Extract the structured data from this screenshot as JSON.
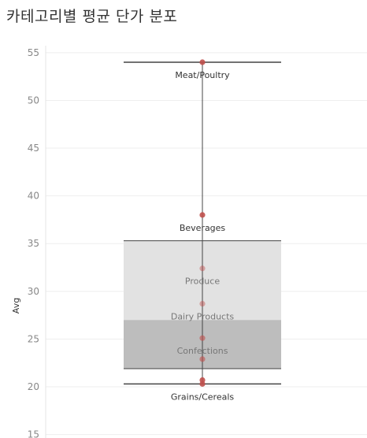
{
  "title": "카테고리별 평균 단가 분포",
  "chart_data": {
    "type": "box",
    "title": "카테고리별 평균 단가 분포",
    "ylabel": "Avg",
    "xlabel": "",
    "ylim": [
      15,
      56
    ],
    "yticks": [
      15,
      20,
      25,
      30,
      35,
      40,
      45,
      50,
      55
    ],
    "box": {
      "whisker_low": 20.3,
      "q1": 21.9,
      "median": 27.0,
      "q3": 35.3,
      "whisker_high": 54.0
    },
    "points": [
      {
        "label": "Meat/Poultry",
        "value": 54.0
      },
      {
        "label": "Beverages",
        "value": 38.0
      },
      {
        "label": "Produce",
        "value": 32.4
      },
      {
        "label": "Dairy Products",
        "value": 28.7
      },
      {
        "label": "Confections",
        "value": 25.1
      },
      {
        "label": "",
        "value": 22.9
      },
      {
        "label": "",
        "value": 20.7
      },
      {
        "label": "Grains/Cereals",
        "value": 20.3
      }
    ],
    "colors": {
      "point": "#c0504d",
      "box_upper": "#e2e2e2",
      "box_lower": "#bdbdbd",
      "line": "#444444",
      "grid": "#eeeeee"
    }
  }
}
